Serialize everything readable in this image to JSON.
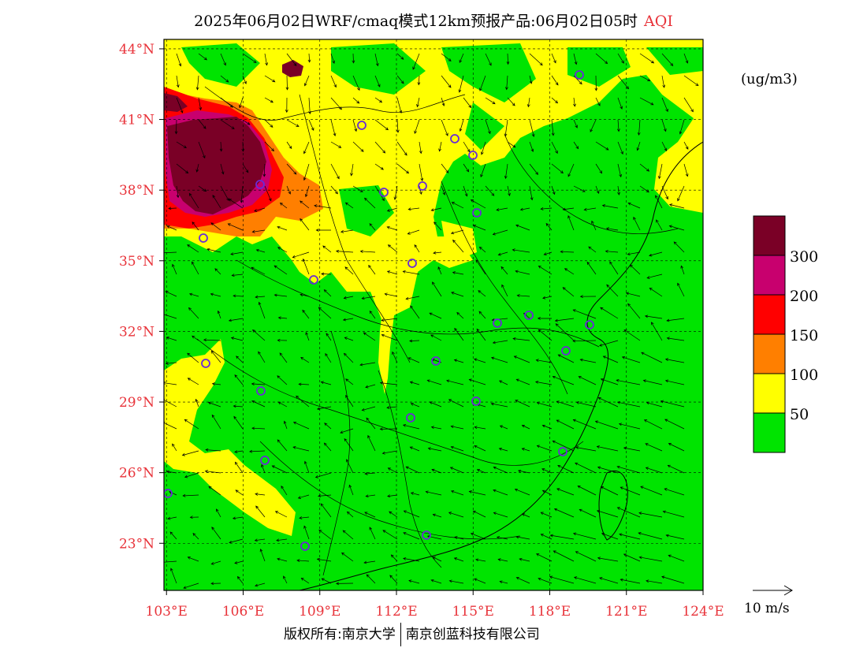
{
  "title": {
    "main": "2025年06月02日WRF/cmaq模式12km预报产品:06月02日05时",
    "tag": "AQI"
  },
  "unit_label": "(ug/m3)",
  "footer": {
    "left": "版权所有:南京大学",
    "right": "南京创蓝科技有限公司"
  },
  "wind_reference": "10 m/s",
  "axes": {
    "lon_labels": [
      "103°E",
      "106°E",
      "109°E",
      "112°E",
      "115°E",
      "118°E",
      "121°E",
      "124°E"
    ],
    "lat_labels": [
      "44°N",
      "41°N",
      "38°N",
      "35°N",
      "32°N",
      "29°N",
      "26°N",
      "23°N"
    ],
    "lon_range": [
      102.9,
      124.0
    ],
    "lat_range": [
      21.0,
      44.4
    ],
    "label_color": "#e8333a"
  },
  "legend": {
    "levels": [
      {
        "label": "",
        "color": "#7a0026"
      },
      {
        "label": "300",
        "color": "#c8006e"
      },
      {
        "label": "200",
        "color": "#ff0000"
      },
      {
        "label": "150",
        "color": "#ff7f00"
      },
      {
        "label": "100",
        "color": "#ffff00"
      },
      {
        "label": "50",
        "color": "#00e400"
      }
    ]
  },
  "colors": {
    "good": "#00e400",
    "moderate": "#ffff00",
    "usg": "#ff7f00",
    "unhealthy": "#ff0000",
    "very_unhealthy": "#c8006e",
    "hazardous": "#7a0026",
    "station": "#6a2bd6"
  }
}
